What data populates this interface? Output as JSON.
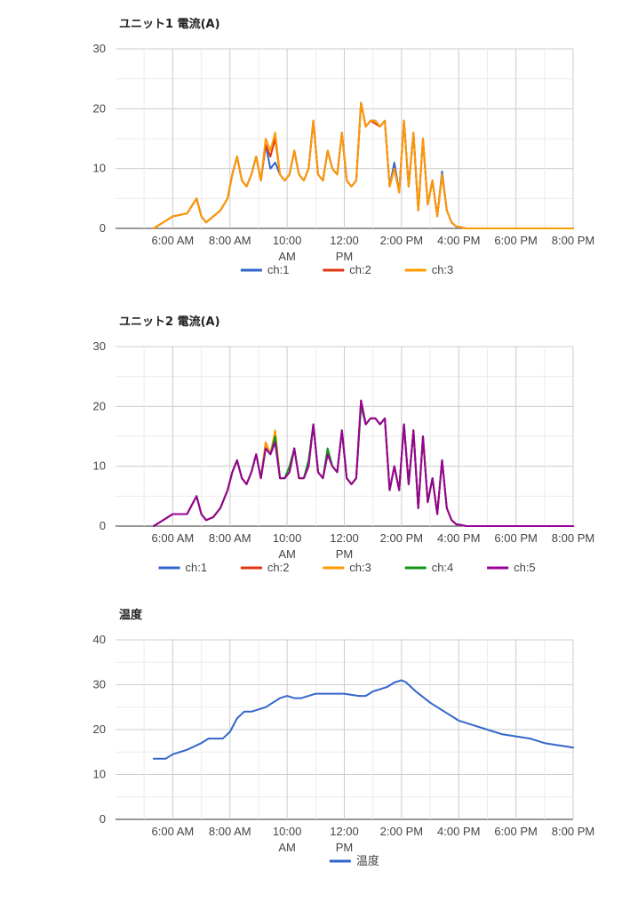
{
  "chart_data": [
    {
      "type": "line",
      "title": "ユニット1 電流(A)",
      "xlabel": "",
      "ylabel": "",
      "x_ticks": [
        "6:00 AM",
        "8:00 AM",
        "10:00 AM",
        "12:00 PM",
        "2:00 PM",
        "4:00 PM",
        "6:00 PM",
        "8:00 PM"
      ],
      "xlim": [
        "4:00 AM",
        "8:00 PM"
      ],
      "ylim": [
        0,
        30
      ],
      "y_ticks": [
        0,
        10,
        20,
        30
      ],
      "grid": true,
      "legend": "bottom",
      "x": [
        "5:20 AM",
        "5:40 AM",
        "6:00 AM",
        "6:30 AM",
        "6:50 AM",
        "7:00 AM",
        "7:10 AM",
        "7:25 AM",
        "7:40 AM",
        "7:55 AM",
        "8:05 AM",
        "8:15 AM",
        "8:25 AM",
        "8:35 AM",
        "8:45 AM",
        "8:55 AM",
        "9:05 AM",
        "9:15 AM",
        "9:25 AM",
        "9:35 AM",
        "9:45 AM",
        "9:55 AM",
        "10:05 AM",
        "10:15 AM",
        "10:25 AM",
        "10:35 AM",
        "10:45 AM",
        "10:55 AM",
        "11:05 AM",
        "11:15 AM",
        "11:25 AM",
        "11:35 AM",
        "11:45 AM",
        "11:55 AM",
        "12:05 PM",
        "12:15 PM",
        "12:25 PM",
        "12:35 PM",
        "12:45 PM",
        "12:55 PM",
        "1:05 PM",
        "1:15 PM",
        "1:25 PM",
        "1:35 PM",
        "1:45 PM",
        "1:55 PM",
        "2:05 PM",
        "2:15 PM",
        "2:25 PM",
        "2:35 PM",
        "2:45 PM",
        "2:55 PM",
        "3:05 PM",
        "3:15 PM",
        "3:25 PM",
        "3:35 PM",
        "3:45 PM",
        "3:55 PM",
        "4:05 PM",
        "4:15 PM",
        "4:30 PM",
        "4:45 PM",
        "5:00 PM",
        "5:30 PM",
        "6:00 PM",
        "7:00 PM",
        "8:00 PM"
      ],
      "series": [
        {
          "name": "ch:1",
          "color": "#3366cc",
          "values": [
            0,
            1,
            2,
            2.5,
            5,
            2,
            1,
            2,
            3,
            5,
            9,
            12,
            8,
            7,
            9,
            12,
            8,
            14,
            10,
            11,
            9,
            8,
            9,
            13,
            9,
            8,
            10,
            18,
            9,
            8,
            13,
            10,
            9,
            16,
            8,
            7,
            8,
            21,
            17,
            18,
            18,
            17,
            18,
            7,
            11,
            6,
            18,
            7,
            16,
            3,
            15,
            4,
            8,
            2,
            9.5,
            3,
            1,
            0.3,
            0.2,
            0,
            0,
            0,
            0,
            0,
            0,
            0,
            0
          ]
        },
        {
          "name": "ch:2",
          "color": "#dc3912",
          "values": [
            0,
            1,
            2,
            2.5,
            5,
            2,
            1,
            2,
            3,
            5,
            9,
            12,
            8,
            7,
            9,
            12,
            8,
            14,
            12,
            15,
            9,
            8,
            9,
            13,
            9,
            8,
            10,
            18,
            9,
            8,
            13,
            10,
            9,
            16,
            8,
            7,
            8,
            21,
            17,
            18,
            17.5,
            17,
            18,
            7,
            10,
            6,
            18,
            7,
            16,
            3,
            15,
            4,
            8,
            2,
            9,
            3,
            1,
            0.3,
            0.2,
            0,
            0,
            0,
            0,
            0,
            0,
            0,
            0
          ]
        },
        {
          "name": "ch:3",
          "color": "#ff9900",
          "values": [
            0,
            1,
            2,
            2.5,
            5,
            2,
            1,
            2,
            3,
            5,
            9,
            12,
            8,
            7,
            9,
            12,
            8,
            15,
            13,
            16,
            9,
            8,
            9,
            13,
            9,
            8,
            10,
            18,
            9,
            8,
            13,
            10,
            9,
            16,
            8,
            7,
            8,
            21,
            17,
            18,
            18,
            17,
            18,
            7,
            10,
            6,
            18,
            7,
            16,
            3,
            15,
            4,
            8,
            2,
            9,
            3,
            1,
            0.3,
            0.2,
            0,
            0,
            0,
            0,
            0,
            0,
            0,
            0
          ]
        }
      ]
    },
    {
      "type": "line",
      "title": "ユニット2 電流(A)",
      "xlabel": "",
      "ylabel": "",
      "x_ticks": [
        "6:00 AM",
        "8:00 AM",
        "10:00 AM",
        "12:00 PM",
        "2:00 PM",
        "4:00 PM",
        "6:00 PM",
        "8:00 PM"
      ],
      "xlim": [
        "4:00 AM",
        "8:00 PM"
      ],
      "ylim": [
        0,
        30
      ],
      "y_ticks": [
        0,
        10,
        20,
        30
      ],
      "grid": true,
      "legend": "bottom",
      "x": [
        "5:20 AM",
        "5:40 AM",
        "6:00 AM",
        "6:30 AM",
        "6:50 AM",
        "7:00 AM",
        "7:10 AM",
        "7:25 AM",
        "7:40 AM",
        "7:55 AM",
        "8:05 AM",
        "8:15 AM",
        "8:25 AM",
        "8:35 AM",
        "8:45 AM",
        "8:55 AM",
        "9:05 AM",
        "9:15 AM",
        "9:25 AM",
        "9:35 AM",
        "9:45 AM",
        "9:55 AM",
        "10:05 AM",
        "10:15 AM",
        "10:25 AM",
        "10:35 AM",
        "10:45 AM",
        "10:55 AM",
        "11:05 AM",
        "11:15 AM",
        "11:25 AM",
        "11:35 AM",
        "11:45 AM",
        "11:55 AM",
        "12:05 PM",
        "12:15 PM",
        "12:25 PM",
        "12:35 PM",
        "12:45 PM",
        "12:55 PM",
        "1:05 PM",
        "1:15 PM",
        "1:25 PM",
        "1:35 PM",
        "1:45 PM",
        "1:55 PM",
        "2:05 PM",
        "2:15 PM",
        "2:25 PM",
        "2:35 PM",
        "2:45 PM",
        "2:55 PM",
        "3:05 PM",
        "3:15 PM",
        "3:25 PM",
        "3:35 PM",
        "3:45 PM",
        "3:55 PM",
        "4:05 PM",
        "4:15 PM",
        "4:30 PM",
        "4:45 PM",
        "5:00 PM",
        "5:30 PM",
        "6:00 PM",
        "7:00 PM",
        "8:00 PM"
      ],
      "series": [
        {
          "name": "ch:1",
          "color": "#3366cc",
          "values": [
            0,
            1,
            2,
            2,
            5,
            2,
            1,
            1.5,
            3,
            6,
            9,
            11,
            8,
            7,
            9,
            12,
            8,
            13,
            12,
            14,
            8,
            8,
            9,
            13,
            8,
            8,
            10,
            17,
            9,
            8,
            12,
            10,
            9,
            16,
            8,
            7,
            8,
            21,
            17,
            18,
            18,
            17,
            18,
            6,
            10,
            6,
            17,
            7,
            16,
            3,
            15,
            4,
            8,
            2,
            11,
            3,
            1,
            0.3,
            0.2,
            0,
            0,
            0,
            0,
            0,
            0,
            0,
            0
          ]
        },
        {
          "name": "ch:2",
          "color": "#dc3912",
          "values": [
            0,
            1,
            2,
            2,
            5,
            2,
            1,
            1.5,
            3,
            6,
            9,
            11,
            8,
            7,
            9,
            12,
            8,
            14,
            12,
            15,
            8,
            8,
            9,
            13,
            8,
            8,
            10,
            17,
            9,
            8,
            12,
            10,
            9,
            16,
            8,
            7,
            8,
            21,
            17,
            18,
            18,
            17,
            18,
            6,
            10,
            6,
            17,
            7,
            16,
            3,
            15,
            4,
            8,
            2,
            11,
            3,
            1,
            0.3,
            0.2,
            0,
            0,
            0,
            0,
            0,
            0,
            0,
            0
          ]
        },
        {
          "name": "ch:3",
          "color": "#ff9900",
          "values": [
            0,
            1,
            2,
            2,
            5,
            2,
            1,
            1.5,
            3,
            6,
            9,
            11,
            8,
            7,
            9,
            12,
            8,
            14,
            12,
            16,
            8,
            8,
            9,
            13,
            8,
            8,
            10,
            17,
            9,
            8,
            12,
            10,
            9,
            16,
            8,
            7,
            8,
            21,
            17,
            18,
            18,
            17,
            18,
            6,
            10,
            6,
            17,
            7,
            16,
            3,
            15,
            4,
            8,
            2,
            11,
            3,
            1,
            0.3,
            0.2,
            0,
            0,
            0,
            0,
            0,
            0,
            0,
            0
          ]
        },
        {
          "name": "ch:4",
          "color": "#109618",
          "values": [
            0,
            1,
            2,
            2,
            5,
            2,
            1,
            1.5,
            3,
            6,
            9,
            11,
            8,
            7,
            9,
            12,
            8,
            13,
            12,
            15,
            8,
            8,
            10,
            13,
            8,
            8,
            11,
            17,
            9,
            8,
            13,
            10,
            9,
            16,
            8,
            7,
            8,
            20,
            17,
            18,
            18,
            17,
            18,
            6,
            10,
            6,
            17,
            7,
            16,
            3,
            15,
            4,
            8,
            2,
            11,
            3,
            1,
            0.3,
            0.2,
            0,
            0,
            0,
            0,
            0,
            0,
            0,
            0
          ]
        },
        {
          "name": "ch:5",
          "color": "#990099",
          "values": [
            0,
            1,
            2,
            2,
            5,
            2,
            1,
            1.5,
            3,
            6,
            9,
            11,
            8,
            7,
            9,
            12,
            8,
            13,
            12,
            14,
            8,
            8,
            9,
            13,
            8,
            8,
            10,
            17,
            9,
            8,
            12,
            10,
            9,
            16,
            8,
            7,
            8,
            21,
            17,
            18,
            18,
            17,
            18,
            6,
            10,
            6,
            17,
            7,
            16,
            3,
            15,
            4,
            8,
            2,
            11,
            3,
            1,
            0.3,
            0.2,
            0,
            0,
            0,
            0,
            0,
            0,
            0,
            0
          ]
        }
      ]
    },
    {
      "type": "line",
      "title": "温度",
      "xlabel": "",
      "ylabel": "",
      "x_ticks": [
        "6:00 AM",
        "8:00 AM",
        "10:00 AM",
        "12:00 PM",
        "2:00 PM",
        "4:00 PM",
        "6:00 PM",
        "8:00 PM"
      ],
      "xlim": [
        "4:00 AM",
        "8:00 PM"
      ],
      "ylim": [
        0,
        40
      ],
      "y_ticks": [
        0,
        10,
        20,
        30,
        40
      ],
      "grid": true,
      "legend": "bottom",
      "x": [
        "5:20 AM",
        "5:45 AM",
        "6:00 AM",
        "6:30 AM",
        "7:00 AM",
        "7:15 AM",
        "7:30 AM",
        "7:45 AM",
        "8:00 AM",
        "8:15 AM",
        "8:30 AM",
        "8:45 AM",
        "9:00 AM",
        "9:15 AM",
        "9:30 AM",
        "9:45 AM",
        "10:00 AM",
        "10:15 AM",
        "10:30 AM",
        "11:00 AM",
        "11:30 AM",
        "12:00 PM",
        "12:30 PM",
        "12:45 PM",
        "1:00 PM",
        "1:30 PM",
        "1:45 PM",
        "2:00 PM",
        "2:10 PM",
        "2:30 PM",
        "3:00 PM",
        "3:30 PM",
        "4:00 PM",
        "4:30 PM",
        "5:00 PM",
        "5:30 PM",
        "6:00 PM",
        "6:30 PM",
        "7:00 PM",
        "7:30 PM",
        "8:00 PM"
      ],
      "series": [
        {
          "name": "温度",
          "color": "#3366cc",
          "values": [
            13.5,
            13.5,
            14.5,
            15.5,
            17,
            18,
            18,
            18,
            19.5,
            22.5,
            24,
            24,
            24.5,
            25,
            26,
            27,
            27.5,
            27,
            27,
            28,
            28,
            28,
            27.5,
            27.5,
            28.5,
            29.5,
            30.5,
            31,
            30.5,
            28.5,
            26,
            24,
            22,
            21,
            20,
            19,
            18.5,
            18,
            17,
            16.5,
            16
          ]
        }
      ]
    }
  ]
}
